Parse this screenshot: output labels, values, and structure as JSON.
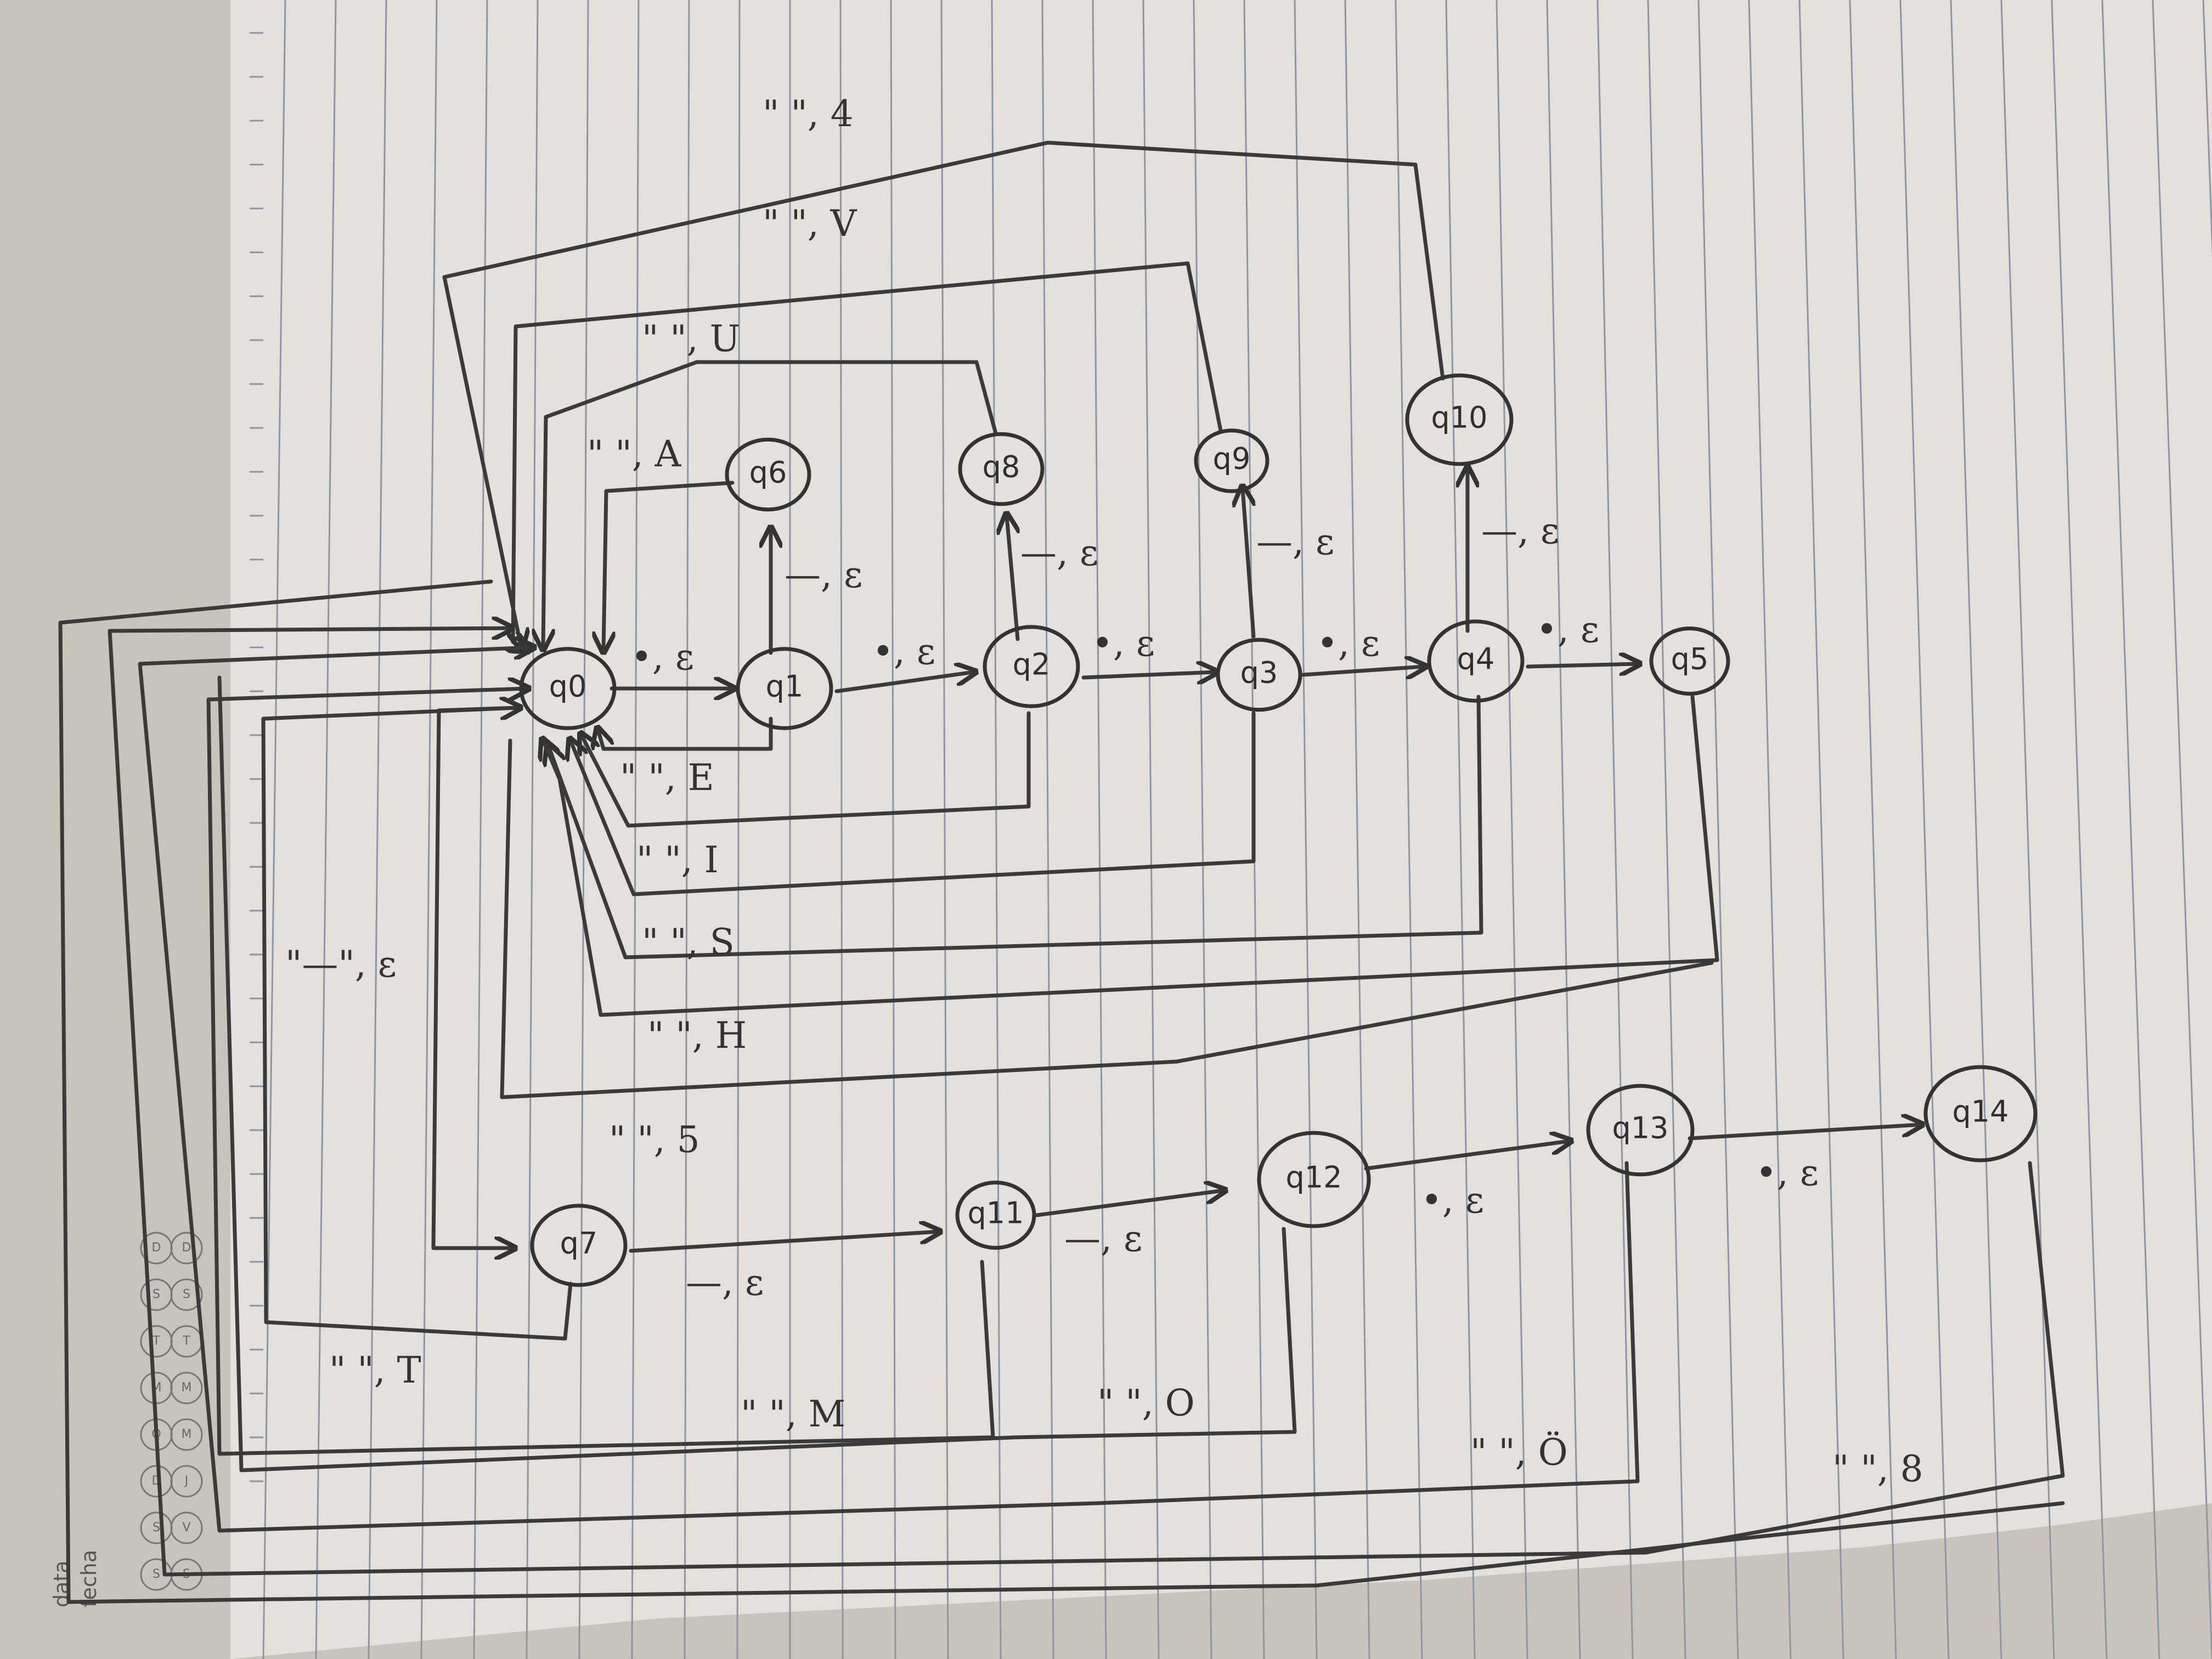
{
  "states": [
    "q0",
    "q1",
    "q2",
    "q3",
    "q4",
    "q5",
    "q6",
    "q7",
    "q8",
    "q9",
    "q10",
    "q11",
    "q12",
    "q13",
    "q14"
  ],
  "edge_labels": {
    "q0_q1": "•, ε",
    "q1_q2": "•, ε",
    "q2_q3": "•, ε",
    "q3_q4": "•, ε",
    "q4_q5": "•, ε",
    "q1_q6": "—, ε",
    "q2_q8": "—, ε",
    "q3_q9": "—, ε",
    "q4_q10": "—, ε",
    "q6_q0": "\" \", A",
    "q8_q0": "\" \", U",
    "q9_q0": "\" \", V",
    "q10_q0": "\" \", 4",
    "q1_q0": "\" \", E",
    "q2_q0": "\" \", I",
    "q3_q0": "\" \", S",
    "q4_q0": "\" \", H",
    "q5_q0": "\" \", 5",
    "q0_q7": "\"—\", ε",
    "q7_q11": "—, ε",
    "q11_q12": "—, ε",
    "q12_q13": "•, ε",
    "q13_q14": "•, ε",
    "q7_q0": "\" \", T",
    "q11_q0": "\" \", M",
    "q12_q0": "\" \", O",
    "q13_q0": "\" \", Ö",
    "q14_q0": "\" \", 8"
  },
  "calendar": {
    "days_top": [
      "S",
      "S",
      "D",
      "Q",
      "M",
      "T",
      "S",
      "D"
    ],
    "days_bottom": [
      "S",
      "V",
      "J",
      "M",
      "M",
      "T",
      "S",
      "D"
    ],
    "data_label": "data",
    "fecha_label": "fecha"
  }
}
